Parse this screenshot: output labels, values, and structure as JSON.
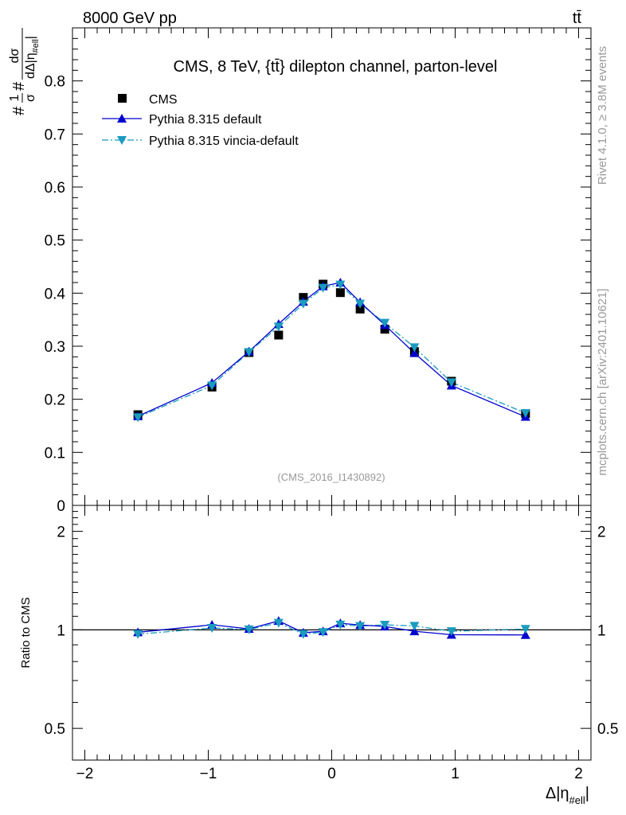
{
  "header": {
    "left": "8000 GeV pp",
    "right": "tt̄"
  },
  "side_labels": {
    "rivet": "Rivet 4.1.0, ≥ 3.8M events",
    "mcplots": "mcplots.cern.ch [arXiv:2401.10621]"
  },
  "chart_data": {
    "type": "scatter",
    "title": "CMS, 8 TeV, {tt̄} dilepton channel, parton-level",
    "analysis_tag": "(CMS_2016_I1430892)",
    "xlabel_main": "Δ|η",
    "xlabel_sub": "#ell",
    "ylabel": {
      "prefix": "#",
      "num1": "1",
      "den1": "σ",
      "mid": "#",
      "num2": "dσ",
      "den2_main": "dΔ|η",
      "den2_sub": "#ell",
      "den2_end": "|"
    },
    "ratio_ylabel": "Ratio to CMS",
    "xlim": [
      -2.1,
      2.1
    ],
    "ylim_main": [
      0,
      0.9
    ],
    "ylim_ratio_log": [
      0.4,
      2.4
    ],
    "x_ticks": [
      "−2",
      "−1",
      "0",
      "1",
      "2"
    ],
    "x_tick_values": [
      -2,
      -1,
      0,
      1,
      2
    ],
    "y_ticks_main": [
      "0",
      "0.1",
      "0.2",
      "0.3",
      "0.4",
      "0.5",
      "0.6",
      "0.7",
      "0.8"
    ],
    "y_tick_values_main": [
      0,
      0.1,
      0.2,
      0.3,
      0.4,
      0.5,
      0.6,
      0.7,
      0.8
    ],
    "y_ticks_ratio": [
      "0.5",
      "1",
      "2"
    ],
    "y_tick_values_ratio": [
      0.5,
      1,
      2
    ],
    "x": [
      -1.57,
      -0.97,
      -0.67,
      -0.43,
      -0.23,
      -0.07,
      0.07,
      0.23,
      0.43,
      0.67,
      0.97,
      1.57
    ],
    "series": [
      {
        "name": "CMS",
        "marker": "square",
        "color": "#000000",
        "values": [
          0.171,
          0.223,
          0.288,
          0.321,
          0.392,
          0.417,
          0.401,
          0.37,
          0.332,
          0.29,
          0.234,
          0.173
        ]
      },
      {
        "name": "Pythia 8.315 default",
        "marker": "triangle-up",
        "line": "solid",
        "color": "#0000cc",
        "values": [
          0.168,
          0.231,
          0.29,
          0.342,
          0.384,
          0.413,
          0.42,
          0.383,
          0.34,
          0.287,
          0.226,
          0.167
        ]
      },
      {
        "name": "Pythia 8.315 vincia-default",
        "marker": "triangle-down",
        "line": "dashdot",
        "color": "#1a9bbf",
        "values": [
          0.166,
          0.226,
          0.289,
          0.337,
          0.38,
          0.41,
          0.416,
          0.38,
          0.344,
          0.298,
          0.232,
          0.174
        ]
      }
    ],
    "ratio_series": [
      {
        "name": "Pythia 8.315 default",
        "values": [
          0.983,
          1.036,
          1.007,
          1.065,
          0.98,
          0.99,
          1.047,
          1.035,
          1.024,
          0.99,
          0.966,
          0.965
        ]
      },
      {
        "name": "Pythia 8.315 vincia-default",
        "values": [
          0.97,
          1.013,
          1.003,
          1.05,
          0.97,
          0.984,
          1.037,
          1.027,
          1.036,
          1.028,
          0.99,
          1.006
        ]
      }
    ]
  }
}
